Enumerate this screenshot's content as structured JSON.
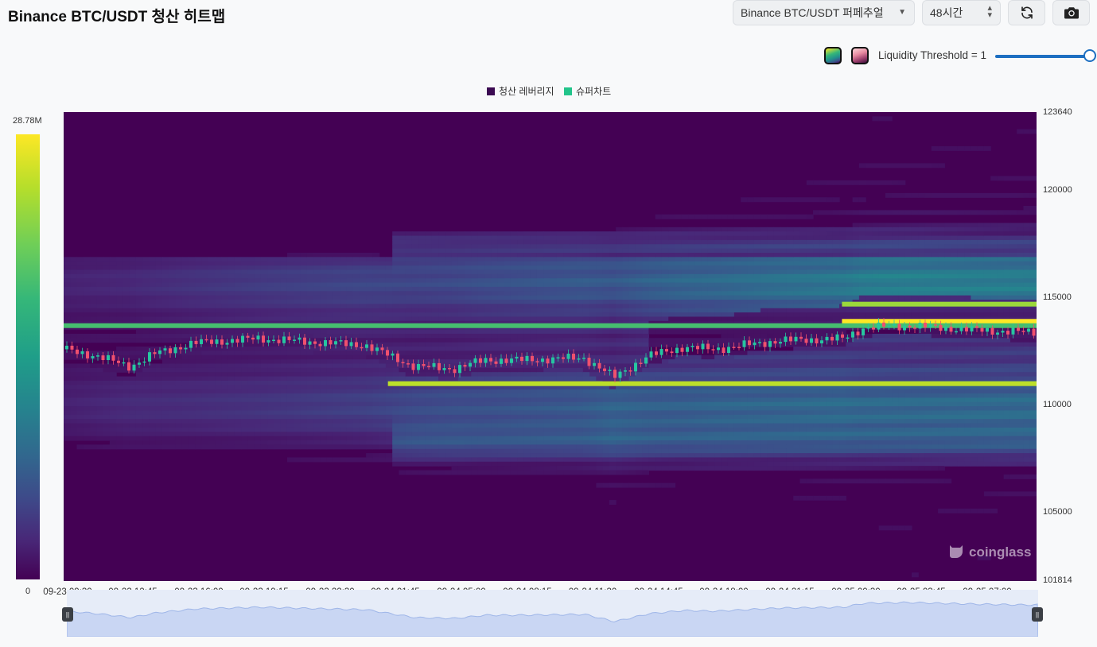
{
  "header": {
    "title": "Binance BTC/USDT 청산 히트맵",
    "exchange_select": "Binance BTC/USDT 퍼페추얼",
    "range_select": "48시간"
  },
  "controls": {
    "threshold_label": "Liquidity Threshold = 1",
    "threshold_value": 1.0,
    "palette_options": [
      "viridis",
      "rose"
    ]
  },
  "legend": {
    "items": [
      {
        "label": "청산 레버리지",
        "color": "#3b0a52"
      },
      {
        "label": "슈퍼차트",
        "color": "#22c48a"
      }
    ]
  },
  "colorbar": {
    "max_label": "28.78M",
    "min_label": "0"
  },
  "watermark": "coinglass",
  "chart_data": {
    "type": "heatmap",
    "title": "",
    "y_ticks": [
      "123640",
      "120000",
      "115000",
      "110000",
      "105000",
      "101814"
    ],
    "ylim": [
      101814,
      123640
    ],
    "x_ticks": [
      "09-23 09:30",
      "09-23 12:45",
      "09-23 16:00",
      "09-23 19:15",
      "09-23 22:30",
      "09-24 01:45",
      "09-24 05:00",
      "09-24 08:15",
      "09-24 11:30",
      "09-24 14:45",
      "09-24 18:00",
      "09-24 21:15",
      "09-25 00:30",
      "09-25 03:45",
      "09-25 07:00"
    ],
    "price_path": [
      {
        "x": "09-23 09:30",
        "y": 112600
      },
      {
        "x": "09-23 11:00",
        "y": 112300
      },
      {
        "x": "09-23 12:45",
        "y": 111800
      },
      {
        "x": "09-23 14:00",
        "y": 112400
      },
      {
        "x": "09-23 16:00",
        "y": 112900
      },
      {
        "x": "09-23 19:15",
        "y": 113100
      },
      {
        "x": "09-23 22:30",
        "y": 112900
      },
      {
        "x": "09-24 00:30",
        "y": 112800
      },
      {
        "x": "09-24 01:45",
        "y": 112300
      },
      {
        "x": "09-24 03:00",
        "y": 111800
      },
      {
        "x": "09-24 05:00",
        "y": 111700
      },
      {
        "x": "09-24 06:30",
        "y": 112100
      },
      {
        "x": "09-24 08:15",
        "y": 112100
      },
      {
        "x": "09-24 11:30",
        "y": 112200
      },
      {
        "x": "09-24 13:00",
        "y": 111300
      },
      {
        "x": "09-24 14:45",
        "y": 112300
      },
      {
        "x": "09-24 16:30",
        "y": 112700
      },
      {
        "x": "09-24 18:00",
        "y": 112600
      },
      {
        "x": "09-24 21:15",
        "y": 113000
      },
      {
        "x": "09-25 00:30",
        "y": 113100
      },
      {
        "x": "09-25 01:30",
        "y": 113600
      },
      {
        "x": "09-25 03:45",
        "y": 113700
      },
      {
        "x": "09-25 07:00",
        "y": 113500
      },
      {
        "x": "09-25 09:30",
        "y": 113400
      }
    ],
    "liquidation_bands": [
      {
        "y": 113900,
        "intensity": 1.0,
        "from": "09-25 00:30"
      },
      {
        "y": 114700,
        "intensity": 0.85,
        "from": "09-25 00:30"
      },
      {
        "y": 111000,
        "intensity": 0.9,
        "from": "09-24 01:45"
      },
      {
        "y": 113700,
        "intensity": 0.7,
        "from": "09-23 09:30"
      }
    ]
  }
}
